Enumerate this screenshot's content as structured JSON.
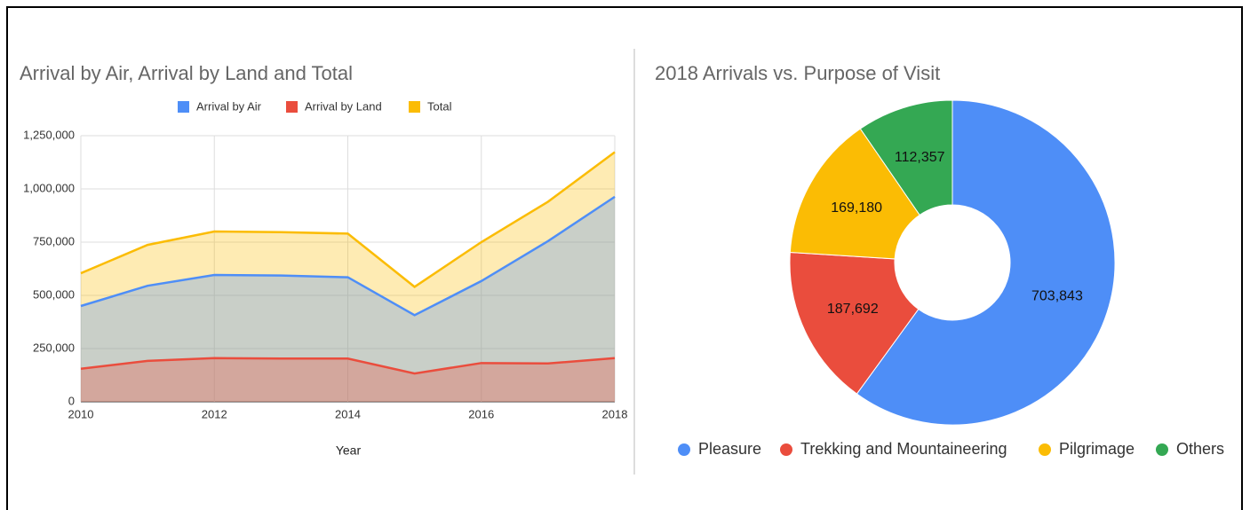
{
  "chart_data": [
    {
      "type": "area",
      "title": "Arrival by Air, Arrival by Land and Total",
      "x_label": "Year",
      "x": [
        2010,
        2011,
        2012,
        2013,
        2014,
        2015,
        2016,
        2017,
        2018
      ],
      "series": [
        {
          "name": "Arrival by Air",
          "color": "#4e8ef7",
          "values": [
            450000,
            545000,
            596000,
            593000,
            585000,
            407000,
            567000,
            755000,
            963000
          ]
        },
        {
          "name": "Arrival by Land",
          "color": "#ea4d3d",
          "values": [
            155000,
            192000,
            205000,
            203000,
            203000,
            133000,
            182000,
            180000,
            205000
          ]
        },
        {
          "name": "Total",
          "color": "#fbbc04",
          "values": [
            604000,
            737000,
            800000,
            797000,
            790000,
            540000,
            750000,
            940000,
            1173000
          ]
        }
      ],
      "xlim": [
        2010,
        2018
      ],
      "xticks": [
        2010,
        2012,
        2014,
        2016,
        2018
      ],
      "ylim": [
        0,
        1250000
      ],
      "yticks": [
        0,
        {
          "value": 250000,
          "label": "250,000"
        },
        {
          "value": 500000,
          "label": "500,000"
        },
        {
          "value": 750000,
          "label": "750,000"
        },
        {
          "value": 1000000,
          "label": "1,000,000"
        },
        {
          "value": 1250000,
          "label": "1,250,000"
        }
      ],
      "grid": true,
      "legend": "top"
    },
    {
      "type": "donut",
      "title": "2018 Arrivals vs. Purpose of Visit",
      "categories": [
        "Pleasure",
        "Trekking and Mountaineering",
        "Pilgrimage",
        "Others"
      ],
      "values": [
        703843,
        187692,
        169180,
        112357
      ],
      "value_labels": [
        "703,843",
        "187,692",
        "169,180",
        "112,357"
      ],
      "colors": [
        "#4e8ef7",
        "#ea4d3d",
        "#fbbc04",
        "#34a853"
      ],
      "legend": "bottom"
    }
  ]
}
